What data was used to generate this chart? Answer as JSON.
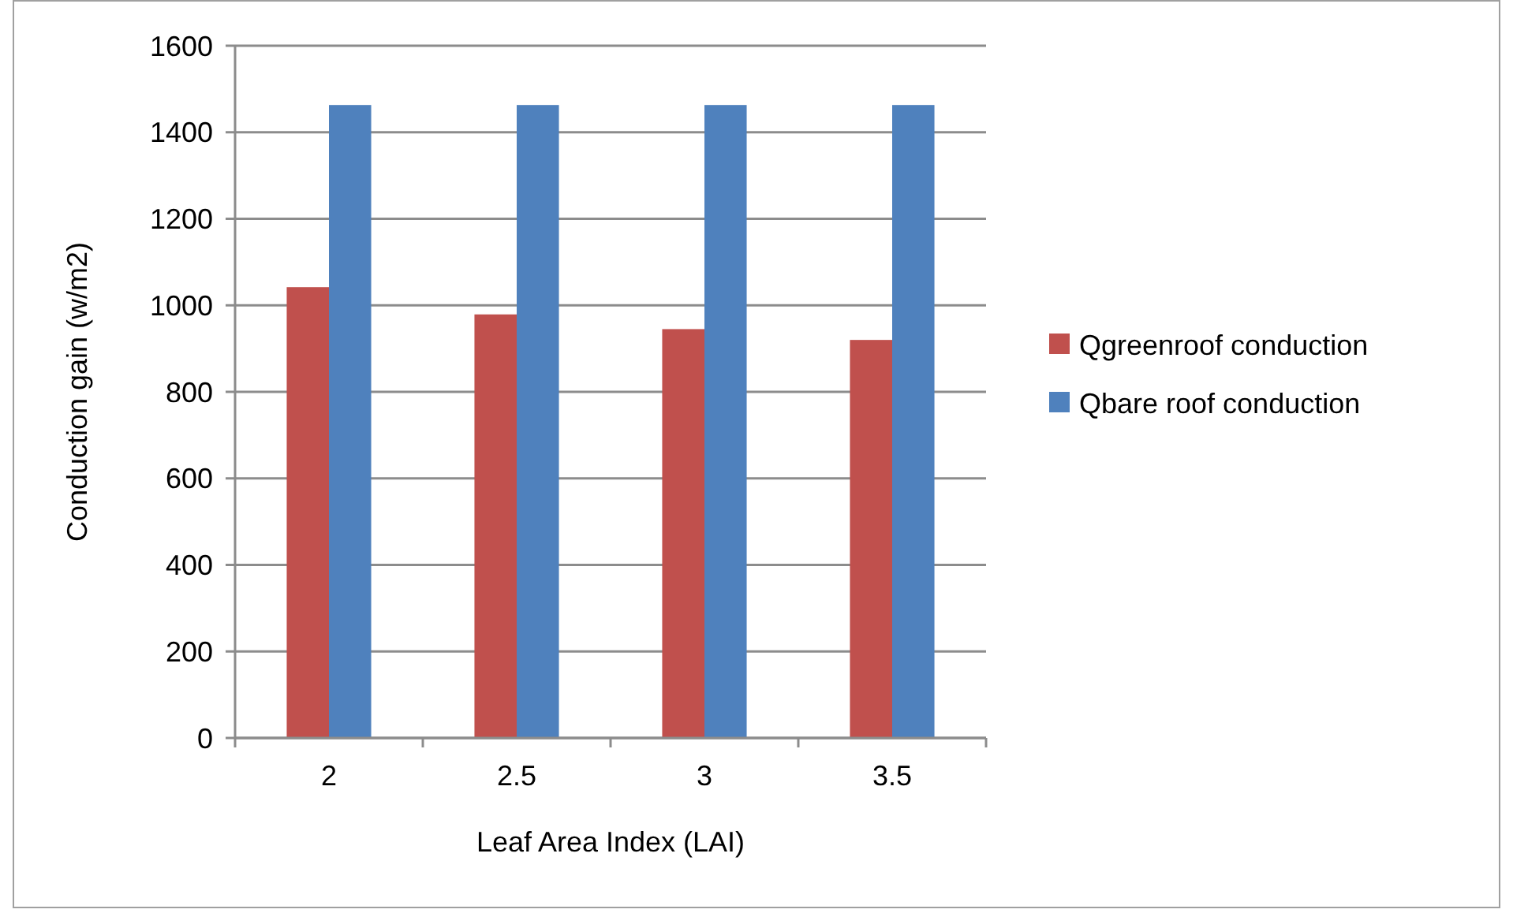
{
  "chart_data": {
    "type": "bar",
    "xlabel": "Leaf Area Index (LAI)",
    "ylabel": "Conduction gain (w/m2)",
    "categories": [
      "2",
      "2.5",
      "3",
      "3.5"
    ],
    "series": [
      {
        "name": "Qgreenroof conduction",
        "color": "#c0504d",
        "values": [
          1042,
          979,
          945,
          920
        ]
      },
      {
        "name": "Qbare roof conduction",
        "color": "#4f81bd",
        "values": [
          1463,
          1463,
          1463,
          1463
        ]
      }
    ],
    "ylim": [
      0,
      1600
    ],
    "yticks": [
      0,
      200,
      400,
      600,
      800,
      1000,
      1200,
      1400,
      1600
    ],
    "grid": "y",
    "legend": "right"
  }
}
